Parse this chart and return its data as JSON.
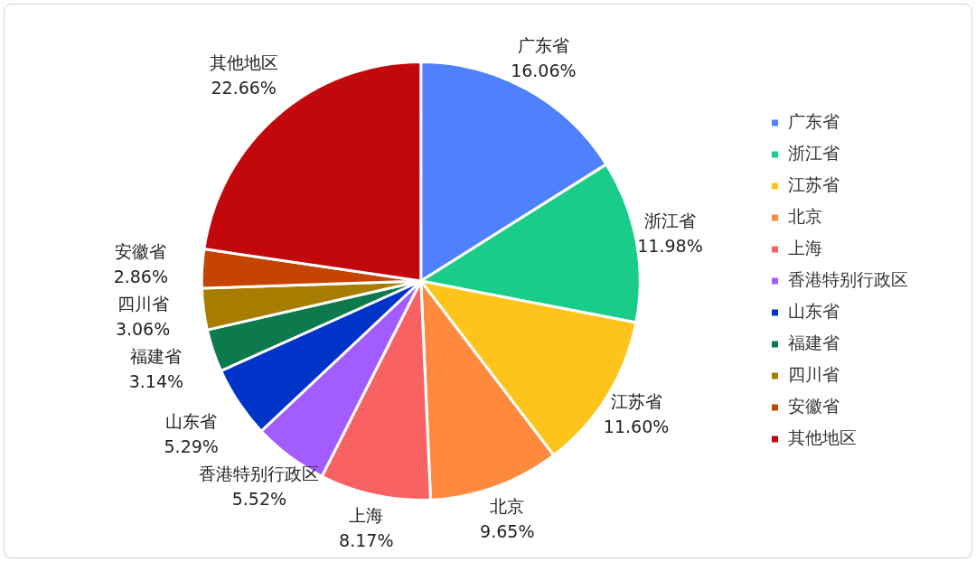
{
  "chart_data": {
    "type": "pie",
    "categories": [
      "广东省",
      "浙江省",
      "江苏省",
      "北京",
      "上海",
      "香港特别行政区",
      "山东省",
      "福建省",
      "四川省",
      "安徽省",
      "其他地区"
    ],
    "values": [
      16.06,
      11.98,
      11.6,
      9.65,
      8.17,
      5.52,
      5.29,
      3.14,
      3.06,
      2.86,
      22.66
    ],
    "value_labels": [
      "16.06%",
      "11.98%",
      "11.60%",
      "9.65%",
      "8.17%",
      "5.52%",
      "5.29%",
      "3.14%",
      "3.06%",
      "2.86%",
      "22.66%"
    ],
    "colors": [
      "#4f81ff",
      "#19cc8a",
      "#ffc41c",
      "#ff8a3d",
      "#f86262",
      "#a35cff",
      "#0034c8",
      "#0c7a4c",
      "#a77d00",
      "#c54400",
      "#c3080b"
    ],
    "legend": "right"
  }
}
